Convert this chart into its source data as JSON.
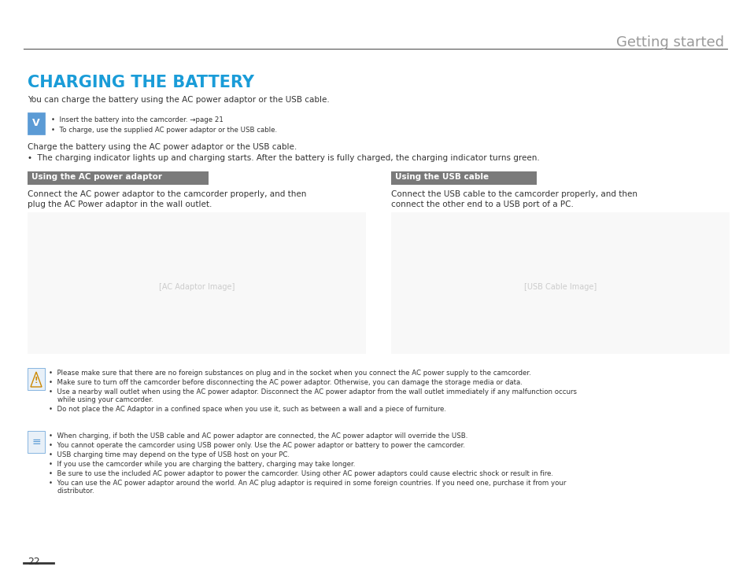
{
  "bg_color": "#ffffff",
  "header_text": "Getting started",
  "header_color": "#999999",
  "header_fontsize": 13,
  "title": "CHARGING THE BATTERY",
  "title_color": "#1a9cd8",
  "title_fontsize": 15,
  "intro_text": "You can charge the battery using the AC power adaptor or the USB cable.",
  "note1_bullets": [
    "Insert the battery into the camcorder. →page 21",
    "To charge, use the supplied AC power adaptor or the USB cable."
  ],
  "charge_text1": "Charge the battery using the AC power adaptor or the USB cable.",
  "charge_bullet": "The charging indicator lights up and charging starts. After the battery is fully charged, the charging indicator turns green.",
  "section1_title": "Using the AC power adaptor",
  "section2_title": "Using the USB cable",
  "section_bg": "#7a7a7a",
  "section_text_color": "#ffffff",
  "section1_desc_lines": [
    "Connect the AC power adaptor to the camcorder properly, and then",
    "plug the AC Power adaptor in the wall outlet."
  ],
  "section2_desc_lines": [
    "Connect the USB cable to the camcorder properly, and then",
    "connect the other end to a USB port of a PC."
  ],
  "warning_bullets": [
    "Please make sure that there are no foreign substances on plug and in the socket when you connect the AC power supply to the camcorder.",
    "Make sure to turn off the camcorder before disconnecting the AC power adaptor. Otherwise, you can damage the storage media or data.",
    "Use a nearby wall outlet when using the AC power adaptor. Disconnect the AC power adaptor from the wall outlet immediately if any malfunction occurs\nwhile using your camcorder.",
    "Do not place the AC Adaptor in a confined space when you use it, such as between a wall and a piece of furniture."
  ],
  "info_bullets": [
    "When charging, if both the USB cable and AC power adaptor are connected, the AC power adaptor will override the USB.",
    "You cannot operate the camcorder using USB power only. Use the AC power adaptor or battery to power the camcorder.",
    "USB charging time may depend on the type of USB host on your PC.",
    "If you use the camcorder while you are charging the battery, charging may take longer.",
    "Be sure to use the included AC power adaptor to power the camcorder. Using other AC power adaptors could cause electric shock or result in fire.",
    "You can use the AC power adaptor around the world. An AC plug adaptor is required in some foreign countries. If you need one, purchase it from your\ndistributor."
  ],
  "page_number": "22",
  "body_fontsize": 7.5,
  "small_fontsize": 6.2,
  "text_color": "#333333"
}
